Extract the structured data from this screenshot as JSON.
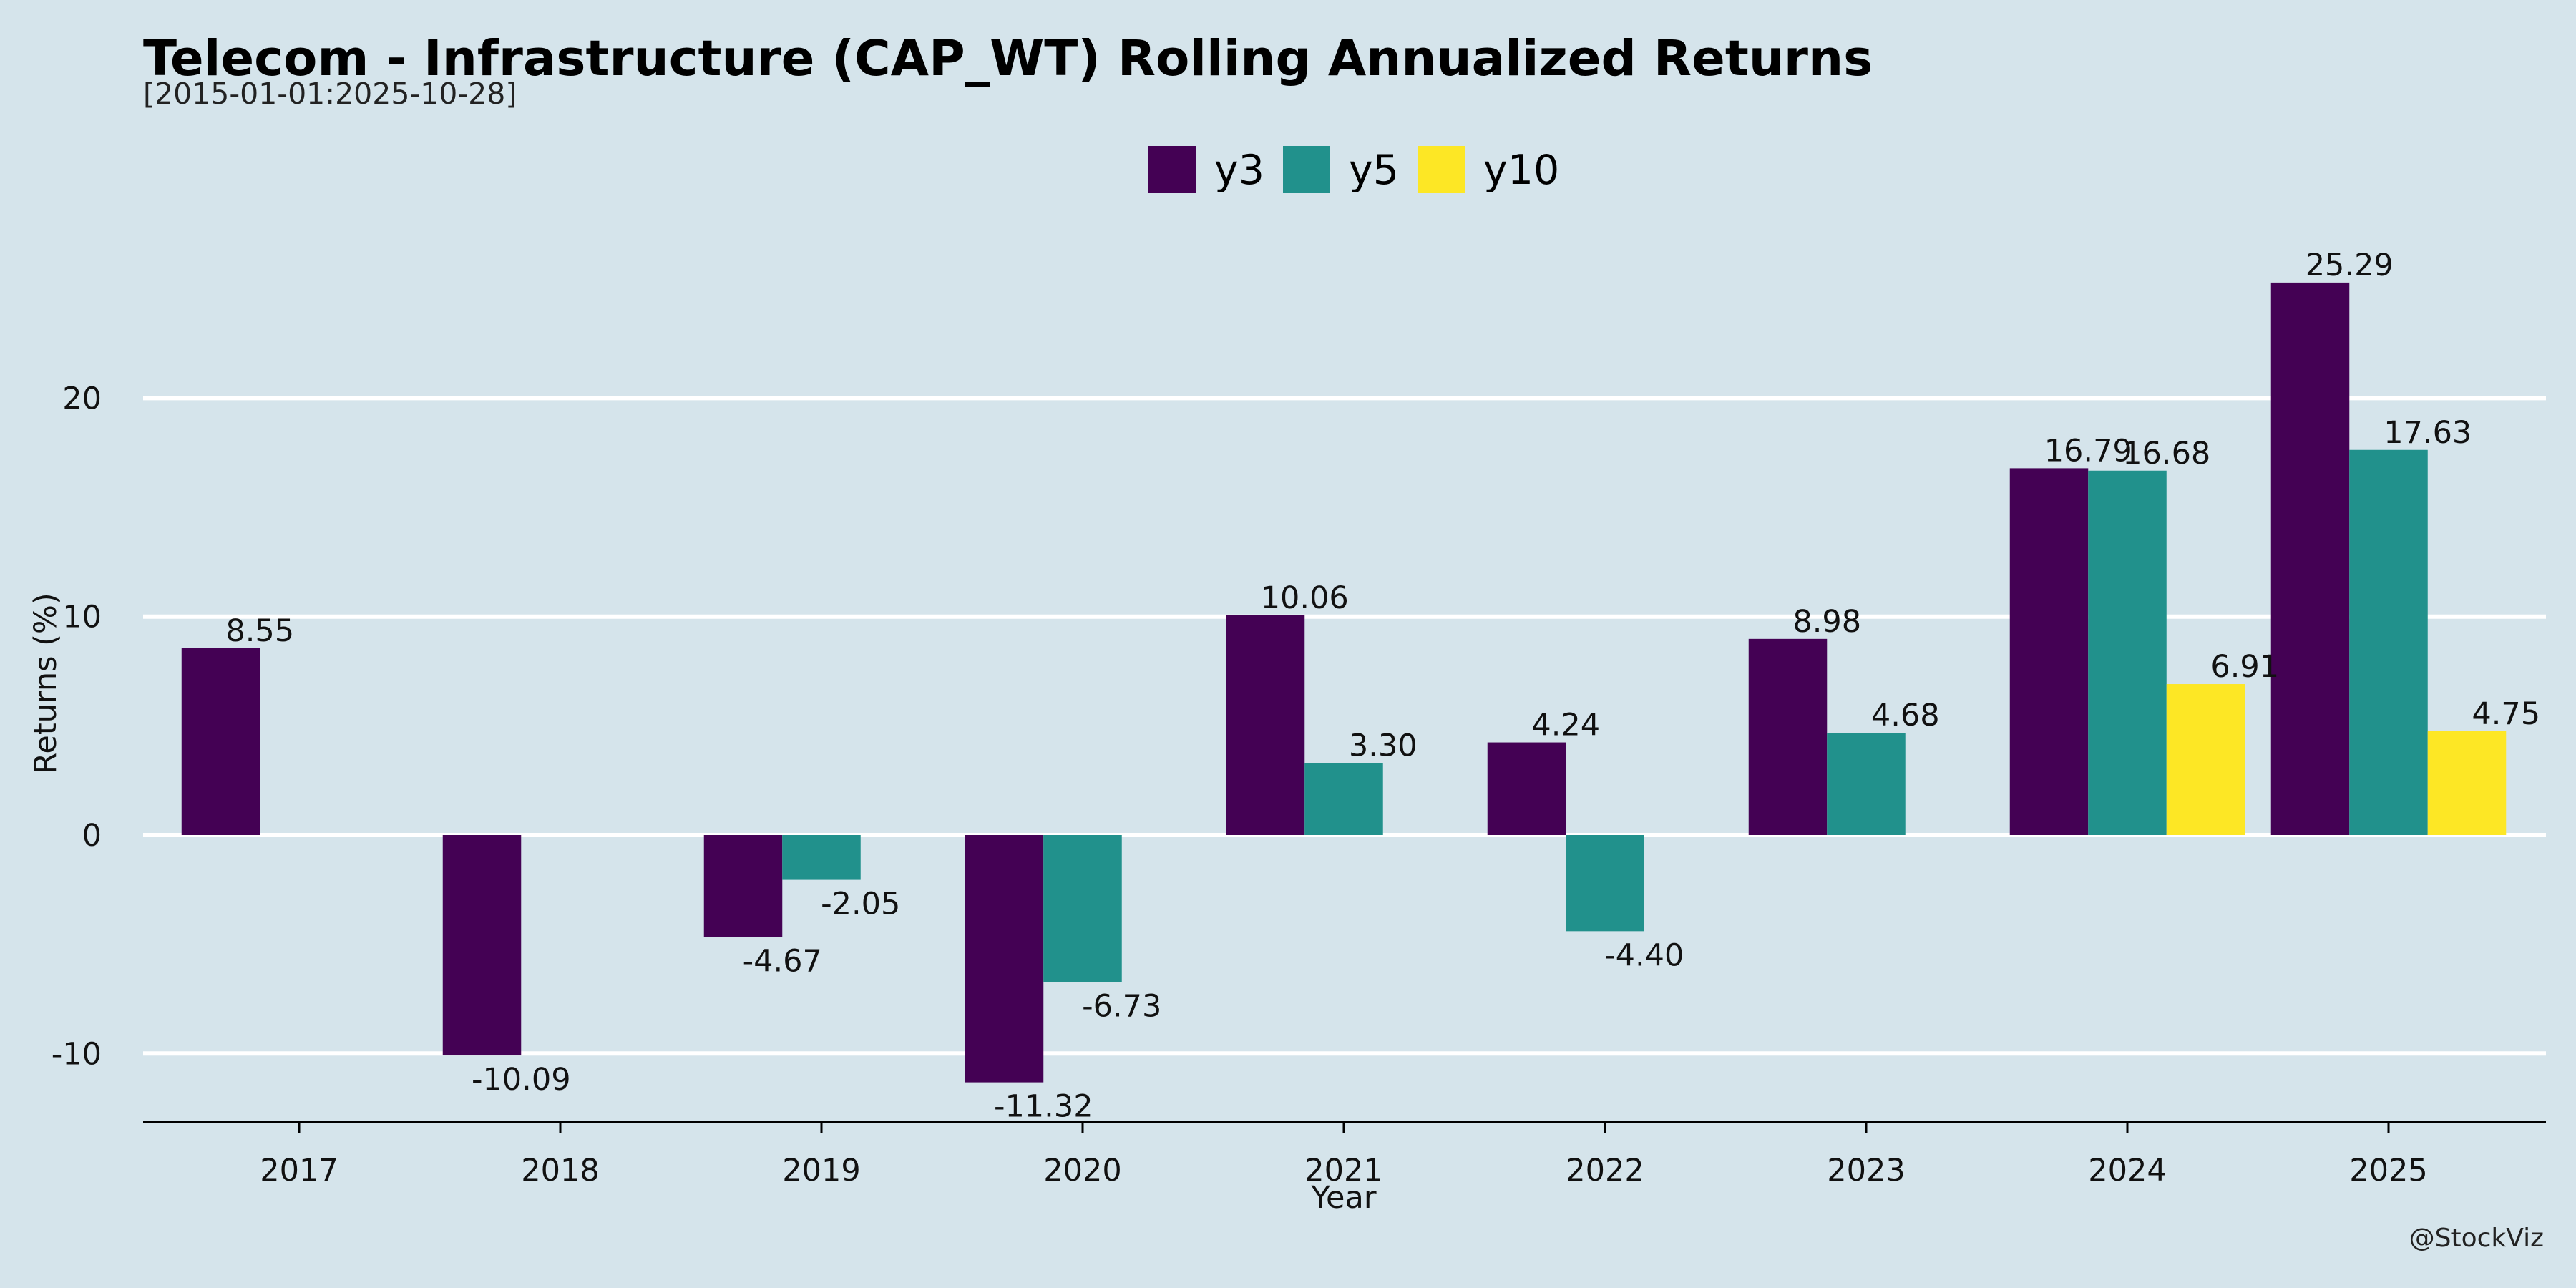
{
  "chart_data": {
    "type": "bar",
    "title": "Telecom - Infrastructure (CAP_WT) Rolling Annualized Returns",
    "subtitle": "[2015-01-01:2025-10-28]",
    "xlabel": "Year",
    "ylabel": "Returns (%)",
    "credit": "@StockViz",
    "categories": [
      "2017",
      "2018",
      "2019",
      "2020",
      "2021",
      "2022",
      "2023",
      "2024",
      "2025"
    ],
    "series": [
      {
        "name": "y3",
        "color": "#440154",
        "values": [
          8.55,
          -10.09,
          -4.67,
          -11.32,
          10.06,
          4.24,
          8.98,
          16.79,
          25.29
        ]
      },
      {
        "name": "y5",
        "color": "#21918c",
        "values": [
          null,
          null,
          -2.05,
          -6.73,
          3.3,
          -4.4,
          4.68,
          16.68,
          17.63
        ]
      },
      {
        "name": "y10",
        "color": "#fde725",
        "values": [
          null,
          null,
          null,
          null,
          null,
          null,
          null,
          6.91,
          4.75
        ]
      }
    ],
    "ylim": [
      -13.2,
      28.2
    ],
    "yticks": [
      -10,
      0,
      10,
      20
    ],
    "grid": true,
    "legend_position": "top-center",
    "background": "#d5e4eb"
  }
}
